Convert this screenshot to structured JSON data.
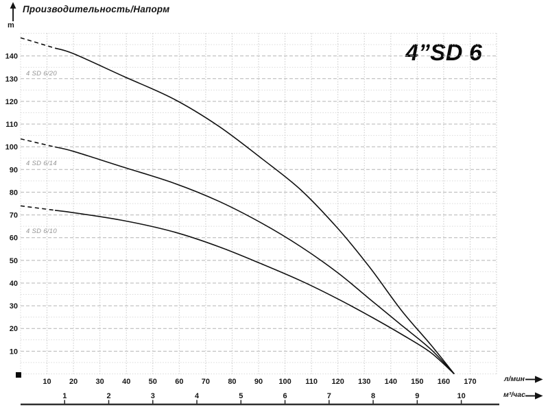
{
  "header": {
    "ylabel": "Производительность/Напорм",
    "y_unit": "m"
  },
  "title": "4”SD 6",
  "axis_units": {
    "flow_lmin": "л/мин",
    "flow_m3h": "м³/час"
  },
  "icons": {
    "y_axis_arrow": "up-arrow",
    "x_axis_arrows": "right-arrow"
  },
  "colors": {
    "curve": "#111111",
    "text": "#161616",
    "grid_major": "#b4b4b4",
    "grid_minor": "#d9d9d9",
    "grid_vertical": "#c7c7c7",
    "curve_label": "#949494",
    "axis_line": "#2e2e2e"
  },
  "chart_data": {
    "type": "line",
    "title": "4”SD 6",
    "ylabel": "Производительность/Напорм",
    "y_unit": "m",
    "xlabel_primary": "л/мин",
    "xlabel_secondary": "м³/час",
    "xlim_lmin": [
      0,
      180
    ],
    "ylim_m": [
      0,
      150
    ],
    "grid": "on",
    "y_ticks_m": [
      10,
      20,
      30,
      40,
      50,
      60,
      70,
      80,
      90,
      100,
      110,
      120,
      130,
      140
    ],
    "x_ticks_lmin": [
      10,
      20,
      30,
      40,
      50,
      60,
      70,
      80,
      90,
      100,
      110,
      120,
      130,
      140,
      150,
      160,
      170
    ],
    "x_ticks_m3h": [
      1,
      2,
      3,
      4,
      5,
      6,
      7,
      8,
      9,
      10
    ],
    "lmin_per_m3h": 16.6667,
    "dashed_until_lmin": 13,
    "series": [
      {
        "name": "4 SD 6/20",
        "points": [
          [
            0,
            148
          ],
          [
            20,
            141
          ],
          [
            39,
            131
          ],
          [
            58,
            121
          ],
          [
            75,
            109
          ],
          [
            91,
            95
          ],
          [
            106,
            81
          ],
          [
            120,
            64
          ],
          [
            132,
            47
          ],
          [
            144,
            28
          ],
          [
            155,
            13
          ],
          [
            164,
            0
          ]
        ]
      },
      {
        "name": "4 SD 6/14",
        "points": [
          [
            0,
            103.5
          ],
          [
            20,
            98
          ],
          [
            39,
            91
          ],
          [
            58,
            84
          ],
          [
            75,
            76
          ],
          [
            91,
            66.5
          ],
          [
            106,
            56
          ],
          [
            120,
            44.5
          ],
          [
            132,
            33
          ],
          [
            144,
            21.5
          ],
          [
            155,
            11
          ],
          [
            164,
            0
          ]
        ]
      },
      {
        "name": "4 SD 6/10",
        "points": [
          [
            0,
            74
          ],
          [
            20,
            71
          ],
          [
            39,
            67.5
          ],
          [
            58,
            62.5
          ],
          [
            75,
            56
          ],
          [
            91,
            48.5
          ],
          [
            106,
            41
          ],
          [
            120,
            33
          ],
          [
            132,
            25.5
          ],
          [
            144,
            17.5
          ],
          [
            155,
            9.5
          ],
          [
            164,
            0
          ]
        ]
      }
    ]
  }
}
